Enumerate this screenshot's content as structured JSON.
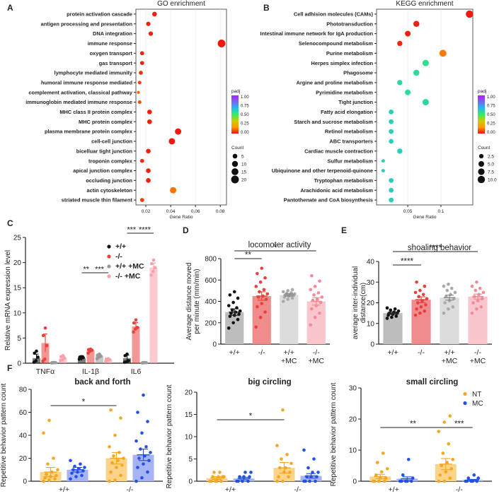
{
  "panel_letters": [
    "A",
    "B",
    "C",
    "D",
    "E",
    "F"
  ],
  "colors": {
    "padj_gradient": [
      "#ee1111",
      "#ff9900",
      "#cccc00",
      "#33ee66",
      "#22bbee",
      "#7766ee",
      "#aa22ff"
    ],
    "c_wt": "#111111",
    "c_ko": "#e8413c",
    "c_wt_mc": "#999999",
    "c_ko_mc": "#f7a1a8",
    "d_wt": "#bdbdbd",
    "d_ko": "#f08c8c",
    "d_wt_mc": "#dcdcdc",
    "d_ko_mc": "#f8c6cc",
    "pt_wt": "#111111",
    "pt_ko": "#e8413c",
    "pt_wt_mc": "#aaaaaa",
    "pt_ko_mc": "#f48a96",
    "nt_bar": "#fbd48a",
    "nt_pt": "#f5a623",
    "mc_bar": "#a6b4f5",
    "mc_pt": "#2350e8"
  },
  "chart_data": [
    {
      "id": "A",
      "type": "scatter",
      "title": "GO enrichment",
      "xlabel": "Gene Ratio",
      "xlim": [
        0.012,
        0.085
      ],
      "xticks": [
        0.02,
        0.04,
        0.06,
        0.08
      ],
      "legend_color": {
        "title": "padj",
        "ticks": [
          "1.00",
          "0.75",
          "0.50",
          "0.25",
          "0.00"
        ]
      },
      "legend_size": {
        "title": "Count",
        "labels": [
          "5",
          "10",
          "15",
          "20"
        ],
        "values": [
          5,
          10,
          15,
          20
        ]
      },
      "points": [
        {
          "term": "protein activation cascade",
          "x": 0.027,
          "count": 5,
          "padj": 0.02
        },
        {
          "term": "antigen processing and presentation",
          "x": 0.022,
          "count": 4,
          "padj": 0.02
        },
        {
          "term": "DNA integration",
          "x": 0.024,
          "count": 4,
          "padj": 0.02
        },
        {
          "term": "immune response",
          "x": 0.081,
          "count": 20,
          "padj": 0.01
        },
        {
          "term": "oxygen transport",
          "x": 0.017,
          "count": 3,
          "padj": 0.02
        },
        {
          "term": "gas transport",
          "x": 0.017,
          "count": 3,
          "padj": 0.02
        },
        {
          "term": "lymphocyte mediated immunity",
          "x": 0.016,
          "count": 3,
          "padj": 0.04
        },
        {
          "term": "humoral immune response mediated ",
          "x": 0.015,
          "count": 2,
          "padj": 0.06
        },
        {
          "term": "complement activation, classical pathway",
          "x": 0.014,
          "count": 1,
          "padj": 0.1
        },
        {
          "term": "immunoglobin mediated immune response",
          "x": 0.015,
          "count": 2,
          "padj": 0.08
        },
        {
          "term": "MHC class II protein complex",
          "x": 0.023,
          "count": 5,
          "padj": 0.02
        },
        {
          "term": "MHC protein complex",
          "x": 0.023,
          "count": 5,
          "padj": 0.02
        },
        {
          "term": "plasma membrane protein complex",
          "x": 0.046,
          "count": 12,
          "padj": 0.01
        },
        {
          "term": "cell-cell junction",
          "x": 0.041,
          "count": 12,
          "padj": 0.01
        },
        {
          "term": "bicelluar tight junction",
          "x": 0.022,
          "count": 5,
          "padj": 0.02
        },
        {
          "term": "troponin complex",
          "x": 0.017,
          "count": 3,
          "padj": 0.03
        },
        {
          "term": "apical junction complex",
          "x": 0.022,
          "count": 5,
          "padj": 0.02
        },
        {
          "term": "occluding junction",
          "x": 0.022,
          "count": 5,
          "padj": 0.02
        },
        {
          "term": "actin cytoskeleton",
          "x": 0.042,
          "count": 12,
          "padj": 0.12
        },
        {
          "term": "striated muscle thin filament",
          "x": 0.017,
          "count": 3,
          "padj": 0.05
        }
      ]
    },
    {
      "id": "B",
      "type": "scatter",
      "title": "KEGG enrichment",
      "xlabel": "Gene Ratio",
      "xlim": [
        0.003,
        0.148
      ],
      "xticks": [
        0.05,
        0.1
      ],
      "xticklabels": [
        "0.05",
        "0.1"
      ],
      "legend_color": {
        "title": "padj",
        "ticks": [
          "1.00",
          "0.75",
          "0.50",
          "0.25",
          "0.00"
        ]
      },
      "legend_size": {
        "title": "Count",
        "labels": [
          "2.5",
          "5.0",
          "7.5",
          "10.0"
        ],
        "values": [
          2.5,
          5,
          7.5,
          10
        ]
      },
      "points": [
        {
          "term": "Cell adhision molecules (CAMs)",
          "x": 0.143,
          "count": 10,
          "padj": 0.01
        },
        {
          "term": "Phototransduction",
          "x": 0.063,
          "count": 6,
          "padj": 0.02
        },
        {
          "term": "Intestinal immune network for IgA production",
          "x": 0.05,
          "count": 5,
          "padj": 0.02
        },
        {
          "term": "Selenocompound metabolism",
          "x": 0.038,
          "count": 4,
          "padj": 0.03
        },
        {
          "term": "Purine metabolism",
          "x": 0.103,
          "count": 9,
          "padj": 0.13
        },
        {
          "term": "Herpes simplex infection",
          "x": 0.077,
          "count": 7,
          "padj": 0.55
        },
        {
          "term": "Phagosome",
          "x": 0.063,
          "count": 6,
          "padj": 0.56
        },
        {
          "term": "Argine and proline metabolism",
          "x": 0.038,
          "count": 4,
          "padj": 0.58
        },
        {
          "term": "Pyrimidine metabolism",
          "x": 0.05,
          "count": 5,
          "padj": 0.57
        },
        {
          "term": "Tight junction",
          "x": 0.077,
          "count": 7,
          "padj": 0.58
        },
        {
          "term": "Fatty acid elongation",
          "x": 0.025,
          "count": 3,
          "padj": 0.6
        },
        {
          "term": "Starch and sucrose metabolism",
          "x": 0.025,
          "count": 3,
          "padj": 0.6
        },
        {
          "term": "Retinol metabolism",
          "x": 0.025,
          "count": 3,
          "padj": 0.6
        },
        {
          "term": "ABC transporters",
          "x": 0.025,
          "count": 3,
          "padj": 0.6
        },
        {
          "term": "Cardiac muscle contraction",
          "x": 0.038,
          "count": 4,
          "padj": 0.6
        },
        {
          "term": "Sulfur metabolism",
          "x": 0.013,
          "count": 1,
          "padj": 0.6
        },
        {
          "term": "Ubiquinone and other terpenoid-quinone",
          "x": 0.013,
          "count": 1,
          "padj": 0.6
        },
        {
          "term": "Tryptophan metabolism",
          "x": 0.025,
          "count": 3,
          "padj": 0.6,
          "highlight": true
        },
        {
          "term": "Arachidonic acid metabolism",
          "x": 0.025,
          "count": 3,
          "padj": 0.6
        },
        {
          "term": "Pantothenate and CoA biosynthesis",
          "x": 0.025,
          "count": 3,
          "padj": 0.6
        }
      ]
    },
    {
      "id": "C",
      "type": "bar",
      "ylabel": "Relative mRNA expression level",
      "ylim": [
        0,
        25
      ],
      "yticks": [
        0,
        5,
        10,
        15,
        20,
        25
      ],
      "categories": [
        "TNFα",
        "IL-1β",
        "IL6"
      ],
      "series": [
        {
          "name": "+/+",
          "values": [
            1.0,
            1.0,
            1.0
          ],
          "sem": [
            0.8,
            0.5,
            0.6
          ],
          "points": [
            [
              0.2,
              0.5,
              1.2,
              2.0,
              2.4
            ],
            [
              0.8,
              1.0,
              1.1,
              1.2,
              1.3
            ],
            [
              0.2,
              0.3,
              0.5,
              1.5,
              1.8
            ]
          ]
        },
        {
          "name": "-/-",
          "values": [
            4.0,
            2.5,
            7.3
          ],
          "sem": [
            1.8,
            0.3,
            0.8
          ],
          "points": [
            [
              0.4,
              0.8,
              3.5,
              5.5,
              7.0
            ],
            [
              2.0,
              2.4,
              2.6,
              2.7,
              2.8
            ],
            [
              6.2,
              6.8,
              7.1,
              8.0,
              8.6
            ]
          ]
        },
        {
          "name": "+/+ +MC",
          "values": [
            0.1,
            1.4,
            0.1
          ],
          "sem": [
            0.05,
            0.3,
            0.05
          ],
          "points": [
            [
              0.05,
              0.08,
              0.1,
              0.12,
              0.15
            ],
            [
              0.9,
              1.2,
              1.4,
              1.6,
              1.8
            ],
            [
              0.05,
              0.08,
              0.1,
              0.12,
              0.15
            ]
          ]
        },
        {
          "name": "-/- +MC",
          "values": [
            1.0,
            0.7,
            19.0
          ],
          "sem": [
            0.4,
            0.2,
            0.9
          ],
          "points": [
            [
              0.5,
              0.7,
              1.0,
              1.3,
              1.5
            ],
            [
              0.4,
              0.6,
              0.7,
              0.8,
              0.9
            ],
            [
              17.5,
              18.2,
              19.0,
              19.8,
              20.5
            ]
          ]
        }
      ],
      "sig": [
        {
          "label": "**",
          "cat": 1,
          "from": 0,
          "to": 1
        },
        {
          "label": "***",
          "cat": 1,
          "from": 1,
          "to": 3
        },
        {
          "label": "***",
          "cat": 2,
          "from": 0,
          "to": 1
        },
        {
          "label": "****",
          "cat": 2,
          "from": 1,
          "to": 3
        }
      ]
    },
    {
      "id": "D",
      "type": "bar",
      "title": "locomoter activity",
      "ylabel": "Average distance moved per minute (mm/min)",
      "ylim": [
        0,
        800
      ],
      "yticks": [
        0,
        200,
        400,
        600,
        800
      ],
      "categories": [
        "+/+",
        "-/-",
        "+/+\n+MC",
        "-/-\n+MC"
      ],
      "values": [
        300,
        450,
        460,
        400
      ],
      "sem": [
        30,
        40,
        12,
        35
      ],
      "points": [
        [
          150,
          200,
          230,
          260,
          270,
          280,
          290,
          300,
          310,
          320,
          340,
          360,
          390,
          430,
          460,
          490
        ],
        [
          160,
          250,
          300,
          350,
          380,
          420,
          440,
          450,
          470,
          490,
          510,
          540,
          580,
          620,
          660,
          710
        ],
        [
          400,
          420,
          430,
          440,
          450,
          455,
          460,
          465,
          470,
          475,
          480,
          490,
          500,
          510
        ],
        [
          180,
          250,
          290,
          330,
          360,
          390,
          410,
          420,
          440,
          460,
          480,
          510,
          540,
          590,
          640
        ]
      ],
      "sig": [
        {
          "label": "**",
          "from": 0,
          "to": 1
        },
        {
          "label": "*",
          "from": 0,
          "to": 3
        }
      ]
    },
    {
      "id": "E",
      "type": "bar",
      "title": "shoaling behavior",
      "ylabel": "average inter-individual distance(cm)",
      "ylim": [
        0,
        40
      ],
      "yticks": [
        0,
        10,
        20,
        30,
        40
      ],
      "categories": [
        "+/+",
        "-/-",
        "+/+\n+MC",
        "-/-\n+MC"
      ],
      "values": [
        15,
        21.5,
        22.5,
        23
      ],
      "sem": [
        0.6,
        1.4,
        1.2,
        1.2
      ],
      "points": [
        [
          12.5,
          13,
          13.5,
          14,
          14.5,
          15,
          15,
          15.5,
          16,
          16.5,
          17,
          17.5
        ],
        [
          14,
          15,
          16,
          17,
          18,
          19,
          20,
          21,
          22,
          23,
          24,
          25,
          26,
          28,
          30
        ],
        [
          15,
          17,
          18,
          20,
          21,
          22,
          23,
          24,
          25,
          26,
          27,
          28,
          29
        ],
        [
          15,
          17,
          18,
          20,
          21,
          22,
          23,
          24,
          25,
          26,
          27,
          28,
          30
        ]
      ],
      "sig": [
        {
          "label": "****",
          "from": 0,
          "to": 1
        },
        {
          "label": "****",
          "from": 0,
          "to": 3
        }
      ]
    },
    {
      "id": "F1",
      "type": "bar",
      "title": "back and forth",
      "ylabel": "Repetitive behavior pattern count",
      "ylim": [
        0,
        80
      ],
      "yticks": [
        0,
        20,
        40,
        60,
        80
      ],
      "categories": [
        "+/+",
        "-/-"
      ],
      "series": [
        {
          "name": "NT",
          "values": [
            8,
            20
          ],
          "sem": [
            4,
            5
          ],
          "points": [
            [
              0,
              1,
              2,
              3,
              4,
              5,
              6,
              8,
              10,
              15,
              20,
              42,
              53
            ],
            [
              0,
              1,
              5,
              8,
              12,
              14,
              16,
              18,
              20,
              22,
              25,
              30,
              40,
              55,
              62
            ]
          ]
        },
        {
          "name": "MC",
          "values": [
            10,
            23
          ],
          "sem": [
            2,
            5
          ],
          "points": [
            [
              2,
              4,
              5,
              7,
              8,
              9,
              10,
              11,
              12,
              13,
              15,
              18
            ],
            [
              0,
              3,
              8,
              12,
              15,
              18,
              20,
              22,
              25,
              28,
              30,
              35,
              42,
              52,
              60,
              75
            ]
          ]
        }
      ],
      "sig": [
        {
          "label": "*",
          "from": "NT0",
          "to": "NT1"
        }
      ]
    },
    {
      "id": "F2",
      "type": "bar",
      "title": "big circling",
      "ylabel": "Repetitive behavior pattern count",
      "ylim": [
        0,
        20
      ],
      "yticks": [
        0,
        5,
        10,
        15,
        20
      ],
      "categories": [
        "+/+",
        "-/-"
      ],
      "series": [
        {
          "name": "NT",
          "values": [
            0.7,
            3
          ],
          "sem": [
            0.3,
            1.2
          ],
          "points": [
            [
              0,
              0,
              0,
              0,
              0,
              1,
              1,
              1,
              1,
              2,
              2
            ],
            [
              0,
              0,
              1,
              1,
              2,
              2,
              3,
              3,
              4,
              5,
              6,
              8,
              16
            ]
          ]
        },
        {
          "name": "MC",
          "values": [
            0.6,
            1.2
          ],
          "sem": [
            0.3,
            0.5
          ],
          "points": [
            [
              0,
              0,
              0,
              0,
              1,
              1,
              1,
              2,
              2
            ],
            [
              0,
              0,
              0,
              0,
              1,
              1,
              1,
              2,
              2,
              3,
              5,
              7
            ]
          ]
        }
      ],
      "sig": [
        {
          "label": "*",
          "from": "NT0",
          "to": "NT1"
        }
      ]
    },
    {
      "id": "F3",
      "type": "bar",
      "title": "small circling",
      "ylabel": "Repetitive behavior pattern count",
      "ylim": [
        0,
        30
      ],
      "yticks": [
        0,
        10,
        20,
        30
      ],
      "categories": [
        "+/+",
        "-/-"
      ],
      "legend": [
        "NT",
        "MC"
      ],
      "series": [
        {
          "name": "NT",
          "values": [
            1.5,
            5.5
          ],
          "sem": [
            0.7,
            1.8
          ],
          "points": [
            [
              0,
              0,
              0,
              0,
              1,
              1,
              2,
              3,
              4,
              6,
              9
            ],
            [
              0,
              0,
              1,
              2,
              3,
              4,
              5,
              6,
              7,
              9,
              12,
              16,
              19,
              21
            ]
          ]
        },
        {
          "name": "MC",
          "values": [
            0.8,
            0.4
          ],
          "sem": [
            0.6,
            0.2
          ],
          "points": [
            [
              0,
              0,
              0,
              0,
              0,
              1,
              2,
              7
            ],
            [
              0,
              0,
              0,
              0,
              0,
              1,
              1,
              2
            ]
          ]
        }
      ],
      "sig": [
        {
          "label": "**",
          "from": "NT0",
          "to": "NT1"
        },
        {
          "label": "***",
          "from": "NT1",
          "to": "MC1"
        }
      ]
    }
  ]
}
